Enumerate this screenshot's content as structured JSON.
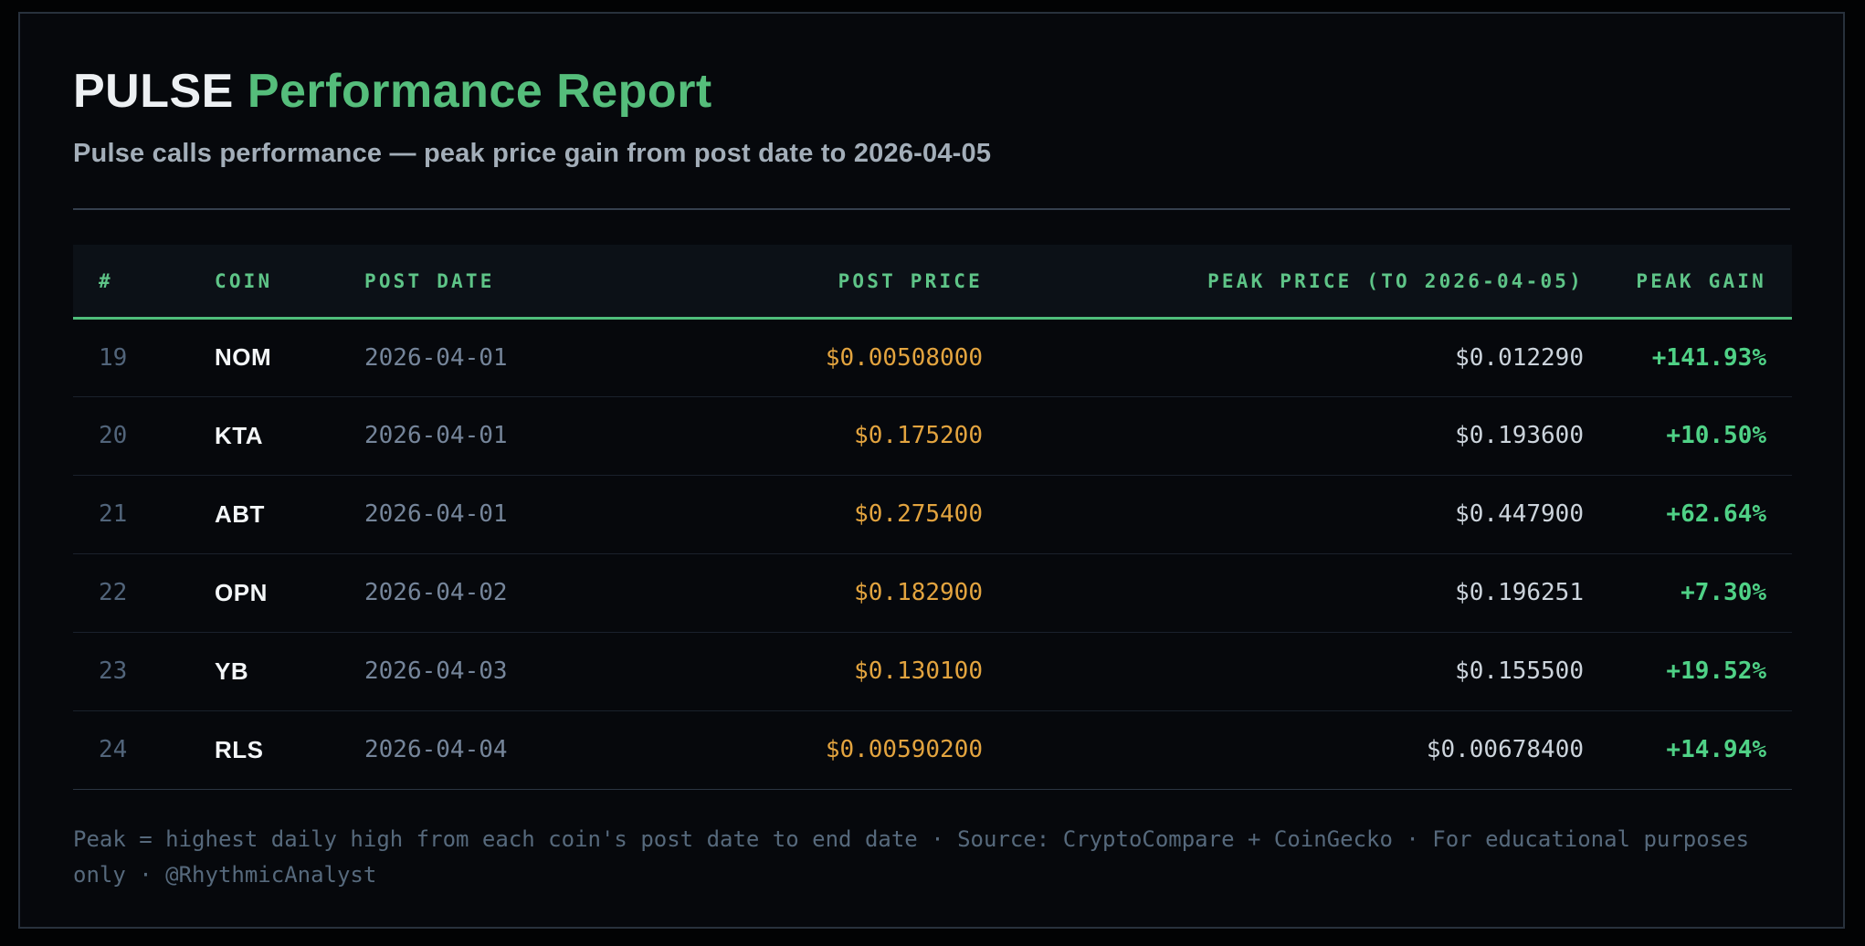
{
  "page": {
    "title_primary": "PULSE",
    "title_secondary": "Performance Report",
    "subtitle": "Pulse calls performance — peak price gain from post date to 2026-04-05",
    "footnote": "Peak = highest daily high from each coin's post date to end date · Source: CryptoCompare + CoinGecko · For educational purposes only · @RhythmicAnalyst"
  },
  "colors": {
    "background": "#06080c",
    "card_border": "#28313c",
    "title_accent_green": "#55bd7b",
    "header_green": "#5ec487",
    "header_rule_green": "#4fbe7a",
    "post_price_amber": "#e3a43f",
    "peak_price_gray": "#ccd4dc",
    "gain_green": "#4fd186",
    "muted_slate": "#56697c"
  },
  "table": {
    "columns": [
      {
        "label": "#"
      },
      {
        "label": "COIN"
      },
      {
        "label": "POST DATE"
      },
      {
        "label": "POST PRICE"
      },
      {
        "label": "PEAK PRICE (TO 2026-04-05)"
      },
      {
        "label": "PEAK GAIN"
      }
    ],
    "rows": [
      {
        "num": "19",
        "coin": "NOM",
        "post_date": "2026-04-01",
        "post_price": "$0.00508000",
        "peak_price": "$0.012290",
        "peak_gain": "+141.93%"
      },
      {
        "num": "20",
        "coin": "KTA",
        "post_date": "2026-04-01",
        "post_price": "$0.175200",
        "peak_price": "$0.193600",
        "peak_gain": "+10.50%"
      },
      {
        "num": "21",
        "coin": "ABT",
        "post_date": "2026-04-01",
        "post_price": "$0.275400",
        "peak_price": "$0.447900",
        "peak_gain": "+62.64%"
      },
      {
        "num": "22",
        "coin": "OPN",
        "post_date": "2026-04-02",
        "post_price": "$0.182900",
        "peak_price": "$0.196251",
        "peak_gain": "+7.30%"
      },
      {
        "num": "23",
        "coin": "YB",
        "post_date": "2026-04-03",
        "post_price": "$0.130100",
        "peak_price": "$0.155500",
        "peak_gain": "+19.52%"
      },
      {
        "num": "24",
        "coin": "RLS",
        "post_date": "2026-04-04",
        "post_price": "$0.00590200",
        "peak_price": "$0.00678400",
        "peak_gain": "+14.94%"
      }
    ]
  },
  "chart_data": {
    "type": "table",
    "title": "PULSE Performance Report",
    "subtitle": "Pulse calls performance — peak price gain from post date to 2026-04-05",
    "columns": [
      "#",
      "COIN",
      "POST DATE",
      "POST PRICE",
      "PEAK PRICE (TO 2026-04-05)",
      "PEAK GAIN"
    ],
    "rows": [
      [
        19,
        "NOM",
        "2026-04-01",
        0.00508,
        0.01229,
        141.93
      ],
      [
        20,
        "KTA",
        "2026-04-01",
        0.1752,
        0.1936,
        10.5
      ],
      [
        21,
        "ABT",
        "2026-04-01",
        0.2754,
        0.4479,
        62.64
      ],
      [
        22,
        "OPN",
        "2026-04-02",
        0.1829,
        0.196251,
        7.3
      ],
      [
        23,
        "YB",
        "2026-04-03",
        0.1301,
        0.1555,
        19.52
      ],
      [
        24,
        "RLS",
        "2026-04-04",
        0.005902,
        0.006784,
        14.94
      ]
    ],
    "units": {
      "post_price": "USD",
      "peak_price": "USD",
      "peak_gain": "percent"
    },
    "footnote": "Peak = highest daily high from each coin's post date to end date · Source: CryptoCompare + CoinGecko · For educational purposes only · @RhythmicAnalyst"
  }
}
